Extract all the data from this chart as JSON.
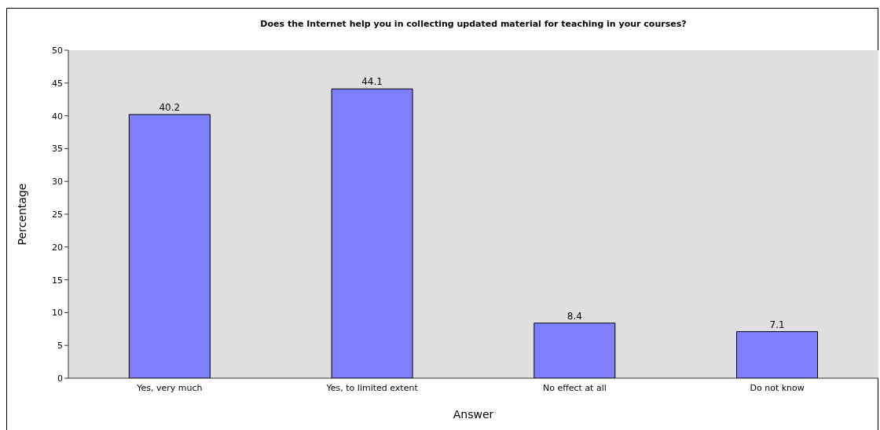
{
  "chart_data": {
    "type": "bar",
    "title": "Does the Internet help you in collecting updated material for teaching in your courses?",
    "xlabel": "Answer",
    "ylabel": "Percentage",
    "categories": [
      "Yes, very much",
      "Yes, to limited extent",
      "No effect at all",
      "Do not know"
    ],
    "values": [
      40.2,
      44.1,
      8.4,
      7.1
    ],
    "color": "#8080ff",
    "ylim": [
      0,
      50
    ],
    "yticks": [
      0,
      5,
      10,
      15,
      20,
      25,
      30,
      35,
      40,
      45,
      50
    ],
    "data_labels": true
  }
}
